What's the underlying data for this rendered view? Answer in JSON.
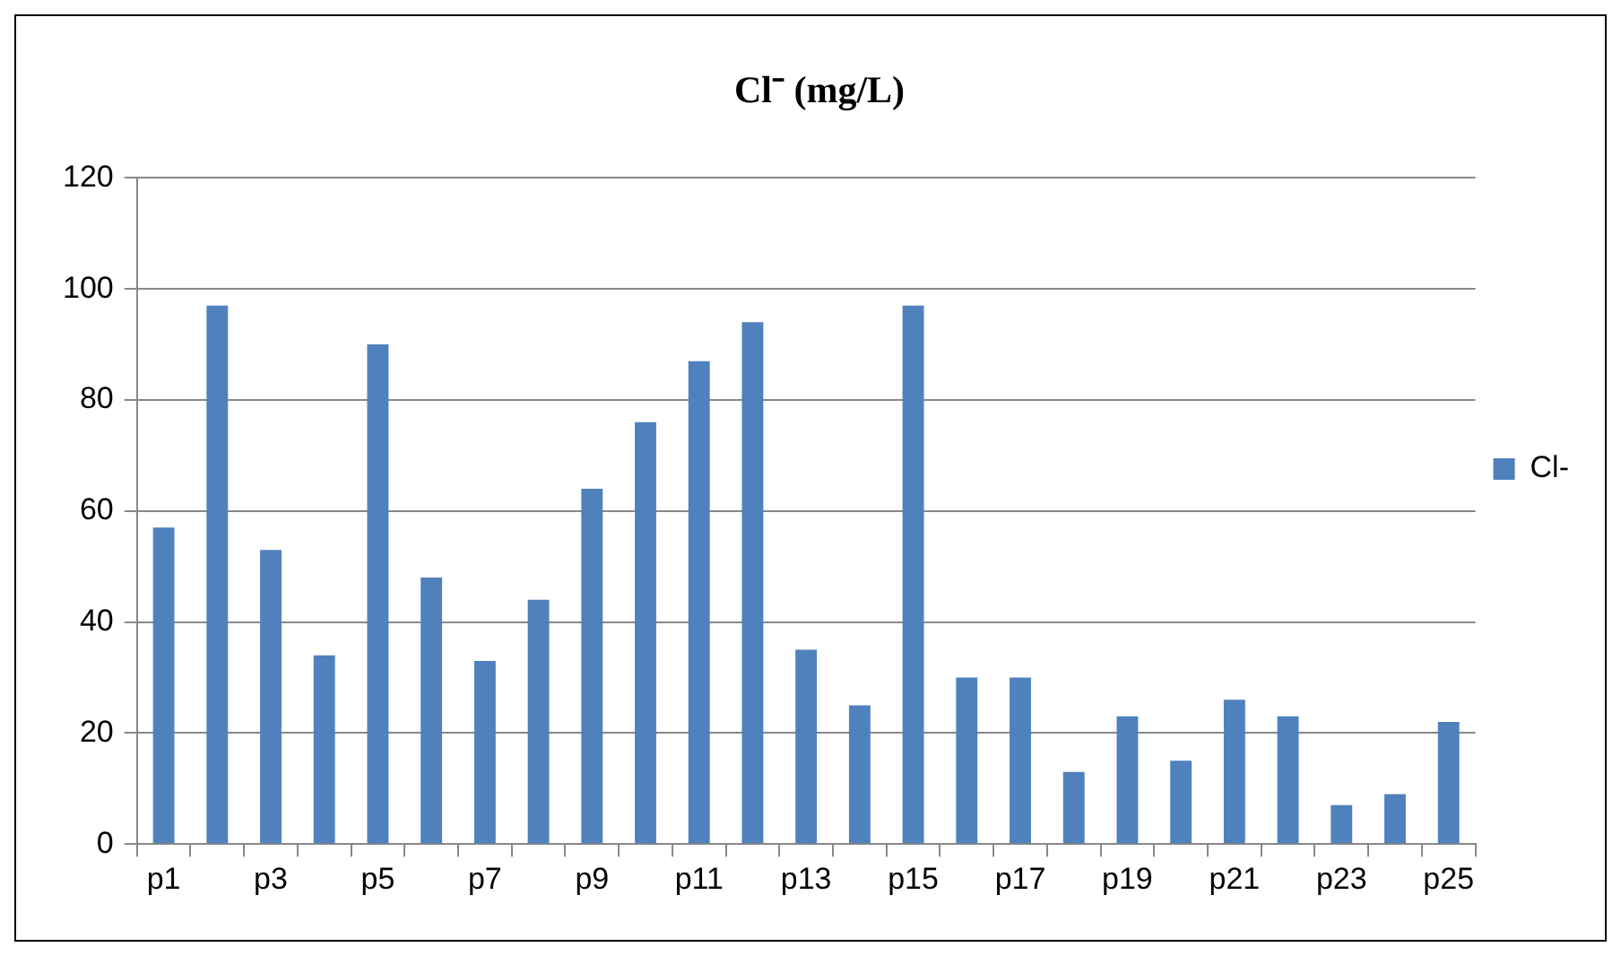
{
  "chart_data": {
    "type": "bar",
    "title": "Cl⁻ (mg/L)",
    "categories": [
      "p1",
      null,
      "p3",
      null,
      "p5",
      null,
      "p7",
      null,
      "p9",
      null,
      "p11",
      null,
      "p13",
      null,
      "p15",
      null,
      "p17",
      null,
      "p19",
      null,
      "p21",
      null,
      "p23",
      null,
      "p25"
    ],
    "series": [
      {
        "name": "Cl-",
        "color": "#4f81bd",
        "values": [
          57,
          97,
          53,
          34,
          90,
          48,
          33,
          44,
          64,
          76,
          87,
          94,
          35,
          25,
          97,
          30,
          30,
          13,
          23,
          15,
          26,
          23,
          7,
          9,
          22
        ]
      }
    ],
    "ylim": [
      0,
      120
    ],
    "yticks": [
      0,
      20,
      40,
      60,
      80,
      100,
      120
    ],
    "grid": "y",
    "legend": "right"
  }
}
